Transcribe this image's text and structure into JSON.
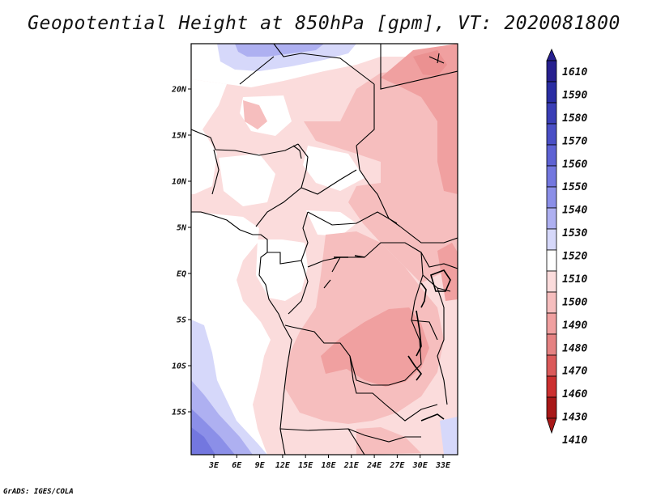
{
  "title": "Geopotential Height at 850hPa [gpm], VT: 2020081800",
  "credit": "GrADS: IGES/COLA",
  "map": {
    "lat_ticks": [
      "20N",
      "15N",
      "10N",
      "5N",
      "EQ",
      "5S",
      "10S",
      "15S"
    ],
    "lon_ticks": [
      "3E",
      "6E",
      "9E",
      "12E",
      "15E",
      "18E",
      "21E",
      "24E",
      "27E",
      "30E",
      "33E"
    ],
    "lon_range_deg": [
      0,
      35
    ],
    "lat_range_deg": [
      -20,
      24.5
    ]
  },
  "colorbar": {
    "levels": [
      "1610",
      "1590",
      "1580",
      "1570",
      "1560",
      "1550",
      "1540",
      "1530",
      "1520",
      "1510",
      "1500",
      "1490",
      "1480",
      "1470",
      "1460",
      "1430",
      "1410"
    ],
    "colors": [
      "#27208f",
      "#2a2da3",
      "#3a3eb6",
      "#4a4fc6",
      "#5e62d4",
      "#7377df",
      "#8b8fe8",
      "#aeb0f1",
      "#d6d8fa",
      "#ffffff",
      "#fbdcdc",
      "#f6bebe",
      "#f0a0a0",
      "#e58282",
      "#db5a5a",
      "#cc3030",
      "#a81818"
    ]
  }
}
